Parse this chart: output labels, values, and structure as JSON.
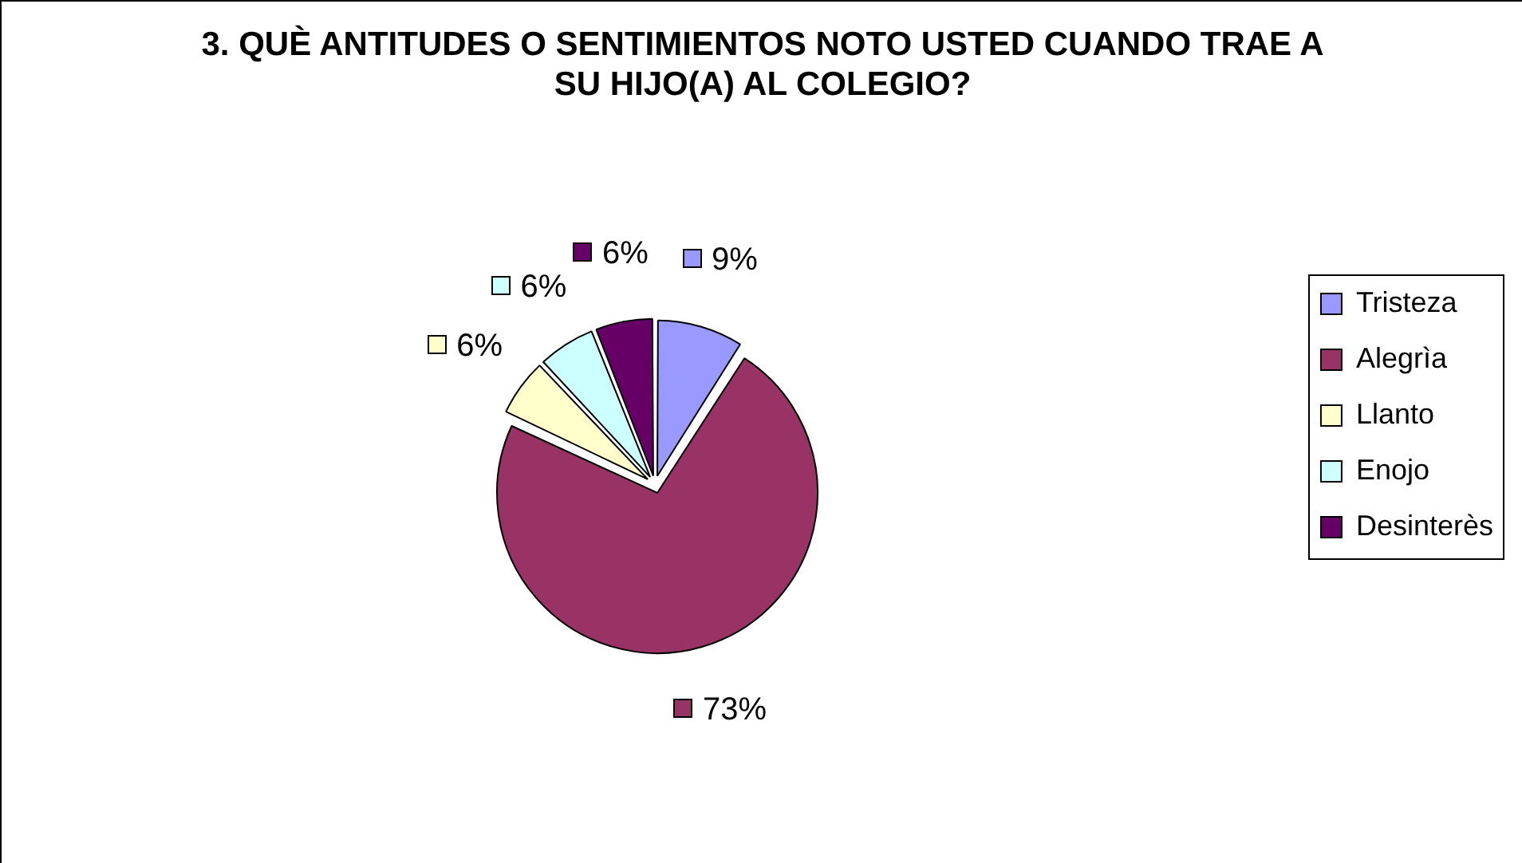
{
  "chart_data": {
    "type": "pie",
    "title": "3. QUÈ ANTITUDES O SENTIMIENTOS NOTO USTED CUANDO TRAE A SU HIJO(A) AL COLEGIO?",
    "categories": [
      "Tristeza",
      "Alegrìa",
      "Llanto",
      "Enojo",
      "Desinterès"
    ],
    "values": [
      9,
      73,
      6,
      6,
      6
    ],
    "colors": [
      "#9999ff",
      "#993366",
      "#ffffcc",
      "#ccffff",
      "#660066"
    ],
    "value_labels": [
      "9%",
      "73%",
      "6%",
      "6%",
      "6%"
    ],
    "legend": "right"
  }
}
